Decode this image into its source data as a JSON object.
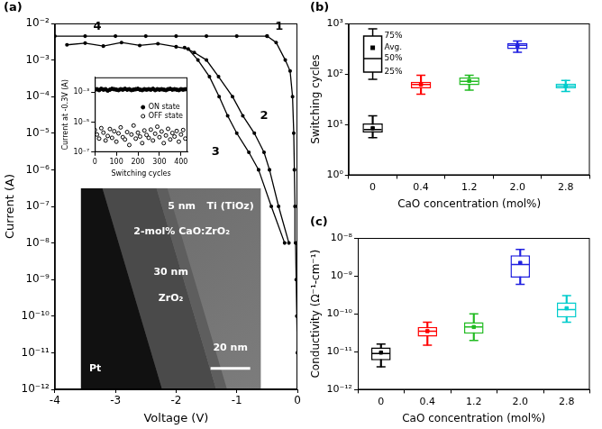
{
  "chart_data": [
    {
      "type": "line",
      "panel": "(a)",
      "x_label": "Voltage (V)",
      "y_label": "Current (A)",
      "log": "y",
      "grid": false,
      "xlim": [
        -4,
        0
      ],
      "xticks": [
        -4,
        -3,
        -2,
        -1,
        0
      ],
      "ylim": [
        1e-12,
        0.01
      ],
      "yticks": [
        {
          "value": 1e-12,
          "label": "10⁻¹²"
        },
        {
          "value": 1e-11,
          "label": "10⁻¹¹"
        },
        {
          "value": 1e-10,
          "label": "10⁻¹⁰"
        },
        {
          "value": 1e-09,
          "label": "10⁻⁹"
        },
        {
          "value": 1e-08,
          "label": "10⁻⁸"
        },
        {
          "value": 1e-07,
          "label": "10⁻⁷"
        },
        {
          "value": 1e-06,
          "label": "10⁻⁶"
        },
        {
          "value": 1e-05,
          "label": "10⁻⁵"
        },
        {
          "value": 0.0001,
          "label": "10⁻⁴"
        },
        {
          "value": 0.001,
          "label": "10⁻³"
        },
        {
          "value": 0.01,
          "label": "10⁻²"
        }
      ],
      "series": [
        {
          "color": "#000000",
          "marker": "circle",
          "line_style": "solid",
          "x": [
            0,
            -0.01,
            -0.02,
            -0.03,
            -0.04,
            -0.05,
            -0.06,
            -0.08,
            -0.12,
            -0.2,
            -0.35,
            -0.5
          ],
          "values": [
            1e-11,
            1e-10,
            1e-09,
            1e-08,
            1e-07,
            1e-06,
            1e-05,
            0.0001,
            0.0005,
            0.001,
            0.003,
            0.0045
          ]
        },
        {
          "color": "#000000",
          "marker": "circle",
          "line_style": "solid",
          "x": [
            -1.86,
            -1.7,
            -1.5,
            -1.3,
            -1.07,
            -0.9,
            -0.71,
            -0.55,
            -0.46,
            -0.31,
            -0.14
          ],
          "values": [
            0.0022,
            0.0016,
            0.001,
            0.00035,
            0.0001,
            3e-05,
            1e-05,
            3e-06,
            1e-06,
            1e-07,
            1e-08
          ]
        },
        {
          "color": "#000000",
          "marker": "circle",
          "line_style": "solid",
          "x": [
            -3.8,
            -3.5,
            -3.2,
            -2.9,
            -2.6,
            -2.3,
            -2.0,
            -1.8,
            -1.64,
            -1.45,
            -1.29,
            -1.15,
            -1.0,
            -0.8,
            -0.64,
            -0.43,
            -0.21
          ],
          "values": [
            0.0026,
            0.0029,
            0.0024,
            0.003,
            0.0025,
            0.0028,
            0.0023,
            0.002,
            0.001,
            0.00035,
            0.0001,
            3e-05,
            1e-05,
            3e-06,
            1e-06,
            1e-07,
            1e-08
          ]
        },
        {
          "color": "#000000",
          "marker": "circle",
          "line_style": "solid",
          "x": [
            -0.5,
            -1,
            -1.5,
            -2,
            -2.5,
            -3,
            -3.5,
            -4
          ],
          "values": [
            0.0045,
            0.0045,
            0.0045,
            0.0045,
            0.0045,
            0.0045,
            0.0045,
            0.0045
          ]
        }
      ],
      "annotations": [
        {
          "text": "1",
          "x": -0.3,
          "y": 0.008
        },
        {
          "text": "2",
          "x": -0.55,
          "y": 3e-05
        },
        {
          "text": "3",
          "x": -1.35,
          "y": 3e-06
        },
        {
          "text": "4",
          "x": -3.3,
          "y": 0.008
        }
      ],
      "image_text": [
        "Ti (TiOz)",
        "5 nm",
        "2-mol% CaO:ZrO₂",
        "30 nm",
        "ZrO₂",
        "Pt",
        "20 nm"
      ],
      "inset": {
        "type": "scatter",
        "x_label": "Switching cycles",
        "y_label": "Current at -0.3V (A)",
        "log": "y",
        "grid": false,
        "legend": "right",
        "xlim": [
          0,
          430
        ],
        "xticks": [
          0,
          100,
          200,
          300,
          400
        ],
        "ylim": [
          1e-07,
          0.01
        ],
        "yticks": [
          {
            "value": 1e-07,
            "label": "10⁻⁷"
          },
          {
            "value": 1e-05,
            "label": "10⁻⁵"
          },
          {
            "value": 0.001,
            "label": "10⁻³"
          }
        ],
        "x": [
          0,
          10,
          20,
          30,
          40,
          50,
          60,
          70,
          80,
          90,
          100,
          110,
          120,
          130,
          140,
          150,
          160,
          170,
          180,
          190,
          200,
          210,
          220,
          230,
          240,
          250,
          260,
          270,
          280,
          290,
          300,
          310,
          320,
          330,
          340,
          350,
          360,
          370,
          380,
          390,
          400,
          410,
          420
        ],
        "series": [
          {
            "name": "ON state",
            "color": "#000000",
            "marker": "circle_filled",
            "values": [
              0.0015,
              0.0016,
              0.0014,
              0.0017,
              0.0015,
              0.0016,
              0.0013,
              0.0015,
              0.0017,
              0.0016,
              0.0015,
              0.0014,
              0.0016,
              0.0015,
              0.0017,
              0.0015,
              0.0016,
              0.0014,
              0.0015,
              0.0016,
              0.0017,
              0.0015,
              0.0014,
              0.0016,
              0.0015,
              0.0016,
              0.0015,
              0.0017,
              0.0014,
              0.0016,
              0.0015,
              0.0016,
              0.0015,
              0.0014,
              0.0016,
              0.0017,
              0.0015,
              0.0016,
              0.0015,
              0.0014,
              0.0016,
              0.0015,
              0.0016
            ]
          },
          {
            "name": "OFF state",
            "color": "#000000",
            "marker": "circle_open",
            "values": [
              3e-06,
              1.5e-06,
              8e-07,
              4e-06,
              2e-06,
              6e-07,
              1.2e-06,
              3.5e-06,
              9e-07,
              2.5e-06,
              5e-07,
              1.8e-06,
              4.5e-06,
              1e-06,
              7e-07,
              2.2e-06,
              3e-07,
              1.5e-06,
              6e-06,
              8e-07,
              2e-06,
              1.1e-06,
              4e-07,
              2.8e-06,
              1.4e-06,
              9e-07,
              3.2e-06,
              6e-07,
              1.7e-06,
              5e-06,
              1e-06,
              2.4e-06,
              4e-07,
              1.3e-06,
              3.6e-06,
              7e-07,
              1.9e-06,
              1.1e-06,
              2.6e-06,
              5e-07,
              1.5e-06,
              3e-06,
              8e-07
            ]
          }
        ]
      }
    },
    {
      "type": "box",
      "panel": "(b)",
      "x_label": "CaO concentration (mol%)",
      "y_label": "Switching cycles",
      "log": "y",
      "grid": false,
      "categories": [
        "0",
        "0.4",
        "1.2",
        "2.0",
        "2.8"
      ],
      "colors": [
        "#000000",
        "#ff0000",
        "#22bb22",
        "#2020e0",
        "#00cccc"
      ],
      "ylim": [
        1,
        1000
      ],
      "yticks": [
        {
          "value": 1,
          "label": "10⁰"
        },
        {
          "value": 10,
          "label": "10¹"
        },
        {
          "value": 100,
          "label": "10²"
        },
        {
          "value": 1000,
          "label": "10³"
        }
      ],
      "whisker_low": [
        5.5,
        40,
        48,
        270,
        45
      ],
      "q1": [
        7,
        52,
        60,
        310,
        52
      ],
      "median": [
        8,
        62,
        72,
        370,
        58
      ],
      "q3": [
        10.5,
        70,
        85,
        410,
        65
      ],
      "whisker_high": [
        15,
        95,
        95,
        450,
        75
      ],
      "mean": [
        8.5,
        62,
        73,
        360,
        58
      ],
      "key_labels": [
        "75%",
        "Avg.",
        "50%",
        "25%"
      ]
    },
    {
      "type": "box",
      "panel": "(c)",
      "x_label": "CaO concentration (mol%)",
      "y_label": "Conductivity (Ω⁻¹-cm⁻¹)",
      "log": "y",
      "grid": false,
      "categories": [
        "0",
        "0.4",
        "1.2",
        "2.0",
        "2.8"
      ],
      "colors": [
        "#000000",
        "#ff0000",
        "#22bb22",
        "#2020e0",
        "#00cccc"
      ],
      "ylim": [
        1e-12,
        1e-08
      ],
      "yticks": [
        {
          "value": 1e-12,
          "label": "10⁻¹²"
        },
        {
          "value": 1e-11,
          "label": "10⁻¹¹"
        },
        {
          "value": 1e-10,
          "label": "10⁻¹⁰"
        },
        {
          "value": 1e-09,
          "label": "10⁻⁹"
        },
        {
          "value": 1e-08,
          "label": "10⁻⁸"
        }
      ],
      "whisker_low": [
        4e-12,
        1.5e-11,
        2e-11,
        6e-10,
        6e-11
      ],
      "q1": [
        6e-12,
        2.5e-11,
        3e-11,
        9e-10,
        8e-11
      ],
      "median": [
        9e-12,
        3.5e-11,
        4.5e-11,
        2e-09,
        1.3e-10
      ],
      "q3": [
        1.3e-11,
        4.5e-11,
        6e-11,
        3.5e-09,
        2e-10
      ],
      "whisker_high": [
        1.6e-11,
        6e-11,
        1e-10,
        5e-09,
        3e-10
      ],
      "mean": [
        9.5e-12,
        3.5e-11,
        4.5e-11,
        2.2e-09,
        1.4e-10
      ]
    }
  ]
}
